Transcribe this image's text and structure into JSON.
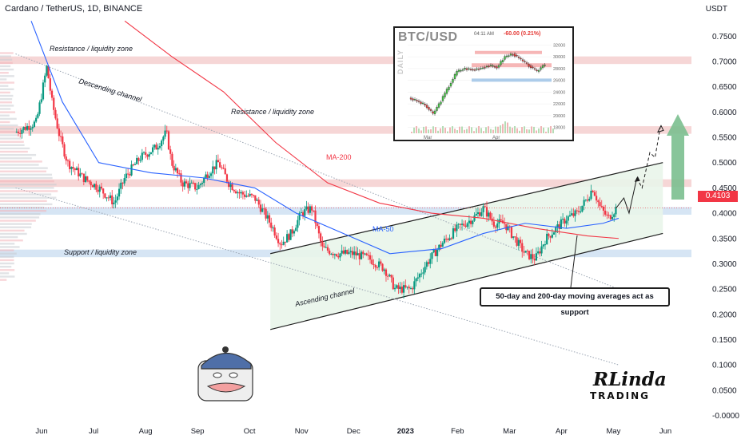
{
  "header": {
    "title": "Cardano / TetherUS, 1D, BINANCE",
    "currency": "USDT",
    "last_price": "0.4103"
  },
  "chart_data": {
    "type": "candlestick",
    "x_tick_labels": [
      "Jun",
      "Jul",
      "Aug",
      "Sep",
      "Oct",
      "Nov",
      "Dec",
      "2023",
      "Feb",
      "Mar",
      "Apr",
      "May",
      "Jun"
    ],
    "y_tick_labels": [
      "0.7500",
      "0.7000",
      "0.6500",
      "0.6000",
      "0.5500",
      "0.5000",
      "0.4500",
      "0.4000",
      "0.3500",
      "0.3000",
      "0.2500",
      "0.2000",
      "0.1500",
      "0.1000",
      "0.0500",
      "-0.0000"
    ],
    "y_ticks": [
      0.75,
      0.7,
      0.65,
      0.6,
      0.55,
      0.5,
      0.45,
      0.4,
      0.35,
      0.3,
      0.25,
      0.2,
      0.15,
      0.1,
      0.05,
      0.0
    ],
    "ylim": [
      -0.015,
      0.79
    ],
    "xlim": [
      -0.3,
      13.0
    ],
    "x_tick_positions": [
      0.5,
      1.5,
      2.5,
      3.5,
      4.5,
      5.5,
      6.5,
      7.5,
      8.5,
      9.5,
      10.5,
      11.5,
      12.5
    ],
    "price_path": [
      [
        0.0,
        0.56
      ],
      [
        0.4,
        0.58
      ],
      [
        0.6,
        0.69
      ],
      [
        0.7,
        0.62
      ],
      [
        0.85,
        0.55
      ],
      [
        1.0,
        0.5
      ],
      [
        1.3,
        0.47
      ],
      [
        1.6,
        0.45
      ],
      [
        1.9,
        0.42
      ],
      [
        2.1,
        0.47
      ],
      [
        2.4,
        0.51
      ],
      [
        2.7,
        0.53
      ],
      [
        2.9,
        0.56
      ],
      [
        3.0,
        0.5
      ],
      [
        3.2,
        0.46
      ],
      [
        3.5,
        0.45
      ],
      [
        3.7,
        0.48
      ],
      [
        3.9,
        0.5
      ],
      [
        4.1,
        0.46
      ],
      [
        4.3,
        0.44
      ],
      [
        4.6,
        0.43
      ],
      [
        4.9,
        0.38
      ],
      [
        5.1,
        0.34
      ],
      [
        5.3,
        0.36
      ],
      [
        5.5,
        0.4
      ],
      [
        5.7,
        0.41
      ],
      [
        5.9,
        0.33
      ],
      [
        6.2,
        0.32
      ],
      [
        6.5,
        0.32
      ],
      [
        6.8,
        0.31
      ],
      [
        7.1,
        0.29
      ],
      [
        7.3,
        0.25
      ],
      [
        7.6,
        0.25
      ],
      [
        7.9,
        0.3
      ],
      [
        8.2,
        0.34
      ],
      [
        8.5,
        0.37
      ],
      [
        8.8,
        0.39
      ],
      [
        9.0,
        0.41
      ],
      [
        9.2,
        0.38
      ],
      [
        9.4,
        0.38
      ],
      [
        9.6,
        0.35
      ],
      [
        9.8,
        0.32
      ],
      [
        10.0,
        0.31
      ],
      [
        10.2,
        0.35
      ],
      [
        10.4,
        0.37
      ],
      [
        10.6,
        0.39
      ],
      [
        10.8,
        0.4
      ],
      [
        11.0,
        0.43
      ],
      [
        11.1,
        0.45
      ],
      [
        11.25,
        0.41
      ],
      [
        11.4,
        0.39
      ],
      [
        11.55,
        0.41
      ]
    ],
    "ma200": [
      [
        2.1,
        0.78
      ],
      [
        3.0,
        0.71
      ],
      [
        4.0,
        0.64
      ],
      [
        5.0,
        0.54
      ],
      [
        6.0,
        0.46
      ],
      [
        7.0,
        0.42
      ],
      [
        8.0,
        0.4
      ],
      [
        9.0,
        0.39
      ],
      [
        10.0,
        0.37
      ],
      [
        11.0,
        0.355
      ],
      [
        11.6,
        0.35
      ]
    ],
    "ma50": [
      [
        0.3,
        0.78
      ],
      [
        0.9,
        0.62
      ],
      [
        1.6,
        0.5
      ],
      [
        2.6,
        0.48
      ],
      [
        3.6,
        0.47
      ],
      [
        4.6,
        0.45
      ],
      [
        5.4,
        0.4
      ],
      [
        6.3,
        0.36
      ],
      [
        7.2,
        0.32
      ],
      [
        8.2,
        0.33
      ],
      [
        9.0,
        0.36
      ],
      [
        9.8,
        0.38
      ],
      [
        10.6,
        0.37
      ],
      [
        11.3,
        0.38
      ],
      [
        11.6,
        0.39
      ]
    ],
    "forecast_path": [
      [
        11.55,
        0.41
      ],
      [
        11.7,
        0.43
      ],
      [
        11.8,
        0.4
      ],
      [
        11.95,
        0.47
      ],
      [
        12.05,
        0.45
      ],
      [
        12.2,
        0.52
      ],
      [
        12.3,
        0.51
      ],
      [
        12.4,
        0.57
      ]
    ],
    "colors": {
      "up": "#089981",
      "down": "#f23645",
      "ma200": "#f23645",
      "ma50": "#2962ff",
      "zone_red": "#f4cfcf",
      "zone_blue": "#cfe0f2",
      "channel_fill": "#e9f5ea",
      "arrow": "#7bbf8f"
    },
    "annotations": [
      "Resistance / liquidity zone",
      "Descending channel",
      "Resistance / liquidity zone",
      "MA-200",
      "MA-50",
      "Support / liquidity zone",
      "Ascending channel"
    ]
  },
  "inset": {
    "title": "BTC/USD",
    "time": "04:11 AM",
    "change": "-60.00 (0.21%)",
    "label": "DAILY",
    "y_tick_labels": [
      "32000",
      "30000",
      "28000",
      "26000",
      "24000",
      "22000",
      "20000",
      "18000"
    ],
    "x_tick_labels": [
      "Mar",
      "Apr"
    ]
  },
  "note": "50-day and 200-day moving averages act as support",
  "logo": {
    "main": "RLinda",
    "sub": "TRADING"
  }
}
